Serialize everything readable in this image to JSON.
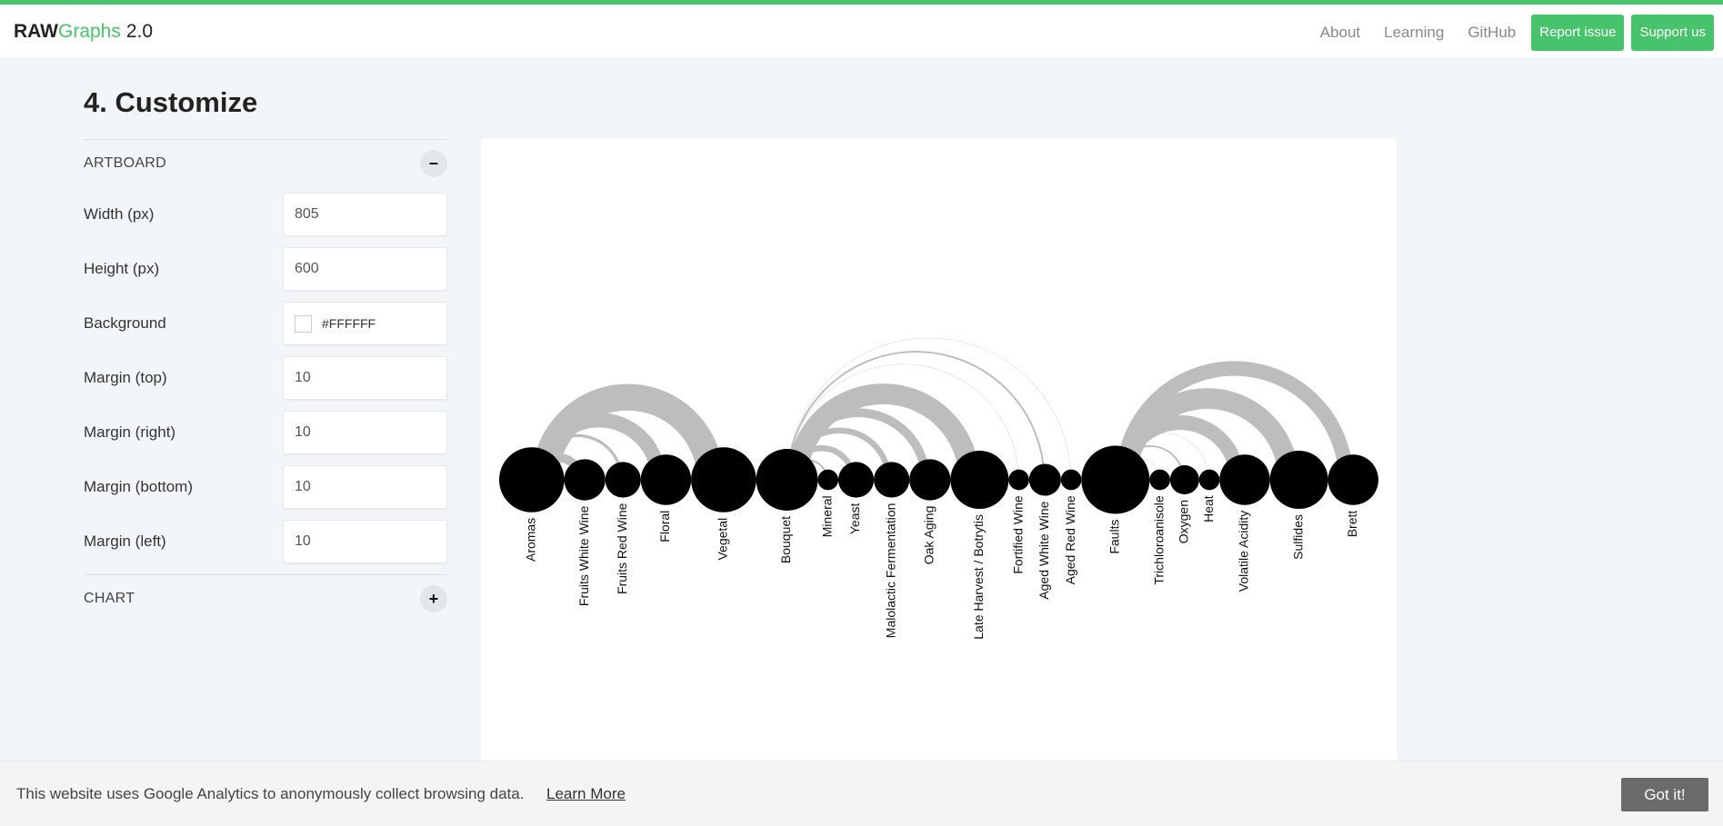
{
  "header": {
    "brand_raw": "RAW",
    "brand_graphs": "Graphs",
    "brand_version": "2.0",
    "nav": [
      "About",
      "Learning",
      "GitHub"
    ],
    "report_label": "Report issue",
    "support_label": "Support us",
    "accent": "#47c36b"
  },
  "section_title": "4. Customize",
  "artboard_panel": {
    "heading": "ARTBOARD",
    "toggle": "−",
    "fields": {
      "width_label": "Width (px)",
      "width_value": "805",
      "height_label": "Height (px)",
      "height_value": "600",
      "background_label": "Background",
      "background_value": "#FFFFFF",
      "margin_top_label": "Margin (top)",
      "margin_top_value": "10",
      "margin_right_label": "Margin (right)",
      "margin_right_value": "10",
      "margin_bottom_label": "Margin (bottom)",
      "margin_bottom_value": "10",
      "margin_left_label": "Margin (left)",
      "margin_left_value": "10"
    }
  },
  "chart_panel": {
    "heading": "CHART",
    "toggle": "+"
  },
  "chart_data": {
    "type": "arc-diagram",
    "nodes": [
      {
        "name": "Aromas",
        "size": 5
      },
      {
        "name": "Fruits White Wine",
        "size": 2
      },
      {
        "name": "Fruits Red Wine",
        "size": 1.5
      },
      {
        "name": "Floral",
        "size": 3
      },
      {
        "name": "Vegetal",
        "size": 5
      },
      {
        "name": "Bouquet",
        "size": 4.5
      },
      {
        "name": "Mineral",
        "size": 0.5
      },
      {
        "name": "Yeast",
        "size": 1.5
      },
      {
        "name": "Malolactic Fermentation",
        "size": 1.5
      },
      {
        "name": "Oak Aging",
        "size": 2
      },
      {
        "name": "Late Harvest / Botrytis",
        "size": 4
      },
      {
        "name": "Fortified Wine",
        "size": 0.5
      },
      {
        "name": "Aged White Wine",
        "size": 1.2
      },
      {
        "name": "Aged Red Wine",
        "size": 0.5
      },
      {
        "name": "Faults",
        "size": 5.5
      },
      {
        "name": "Trichloroanisole",
        "size": 0.5
      },
      {
        "name": "Oxygen",
        "size": 1
      },
      {
        "name": "Heat",
        "size": 0.5
      },
      {
        "name": "Volatile Acidity",
        "size": 3
      },
      {
        "name": "Sulfides",
        "size": 4
      },
      {
        "name": "Brett",
        "size": 3
      }
    ],
    "links": [
      {
        "source": "Aromas",
        "target": "Fruits White Wine",
        "value": 1.5
      },
      {
        "source": "Aromas",
        "target": "Fruits Red Wine",
        "value": 0.5
      },
      {
        "source": "Aromas",
        "target": "Floral",
        "value": 2.5
      },
      {
        "source": "Aromas",
        "target": "Vegetal",
        "value": 4.5
      },
      {
        "source": "Bouquet",
        "target": "Mineral",
        "value": 0.3
      },
      {
        "source": "Bouquet",
        "target": "Yeast",
        "value": 1
      },
      {
        "source": "Bouquet",
        "target": "Malolactic Fermentation",
        "value": 1
      },
      {
        "source": "Bouquet",
        "target": "Oak Aging",
        "value": 1.5
      },
      {
        "source": "Bouquet",
        "target": "Late Harvest / Botrytis",
        "value": 3.5
      },
      {
        "source": "Bouquet",
        "target": "Fortified Wine",
        "value": 0.1
      },
      {
        "source": "Bouquet",
        "target": "Aged White Wine",
        "value": 0.3
      },
      {
        "source": "Bouquet",
        "target": "Aged Red Wine",
        "value": 0.1
      },
      {
        "source": "Faults",
        "target": "Trichloroanisole",
        "value": 0.1
      },
      {
        "source": "Faults",
        "target": "Oxygen",
        "value": 0.3
      },
      {
        "source": "Faults",
        "target": "Heat",
        "value": 0.1
      },
      {
        "source": "Faults",
        "target": "Volatile Acidity",
        "value": 2.5
      },
      {
        "source": "Faults",
        "target": "Sulfides",
        "value": 3.5
      },
      {
        "source": "Faults",
        "target": "Brett",
        "value": 2.5
      }
    ]
  },
  "cookie": {
    "text": "This website uses Google Analytics to anonymously collect browsing data.",
    "link": "Learn More",
    "button": "Got it!"
  }
}
